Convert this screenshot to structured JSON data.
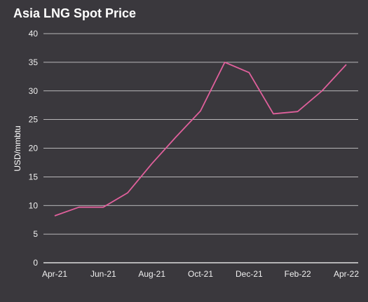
{
  "chart_data": {
    "type": "line",
    "title": "Asia LNG Spot Price",
    "ylabel": "USD/mmbtu",
    "xlabel": "",
    "ylim": [
      0,
      40
    ],
    "yticks": [
      0,
      5,
      10,
      15,
      20,
      25,
      30,
      35,
      40
    ],
    "x": [
      "Apr-21",
      "May-21",
      "Jun-21",
      "Jul-21",
      "Aug-21",
      "Sep-21",
      "Oct-21",
      "Nov-21",
      "Dec-21",
      "Jan-22",
      "Feb-22",
      "Mar-22",
      "Apr-22"
    ],
    "xticks": [
      "Apr-21",
      "Jun-21",
      "Aug-21",
      "Oct-21",
      "Dec-21",
      "Feb-22",
      "Apr-22"
    ],
    "series": [
      {
        "values": [
          8.2,
          9.7,
          9.7,
          12.2,
          17.3,
          22.0,
          26.5,
          35.0,
          33.2,
          26.0,
          26.4,
          30.0,
          34.6
        ]
      }
    ],
    "grid": true,
    "colors": {
      "background": "#3a383d",
      "grid": "#ffffff",
      "line": "#e0609c",
      "text": "#ffffff"
    }
  }
}
